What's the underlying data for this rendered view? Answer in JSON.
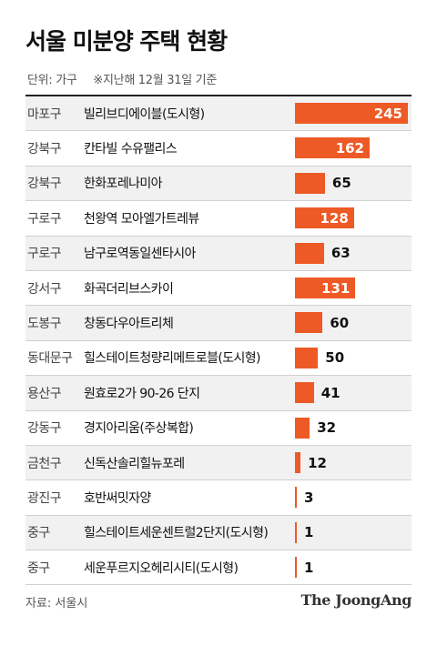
{
  "title": "서울 미분양 주택 현황",
  "unit_note": "단위: 가구",
  "date_note": "※지난해 12월 31일 기준",
  "source": "자료: 서울시",
  "logo": "The JoongAng",
  "colors": {
    "bar": "#ee5a26",
    "row_alt": "#f1f1f1"
  },
  "chart_data": {
    "type": "bar",
    "orientation": "horizontal",
    "xlim": [
      0,
      245
    ],
    "rows": [
      {
        "district": "마포구",
        "complex": "빌리브디에이블(도시형)",
        "value": 245
      },
      {
        "district": "강북구",
        "complex": "칸타빌 수유팰리스",
        "value": 162
      },
      {
        "district": "강북구",
        "complex": "한화포레나미아",
        "value": 65
      },
      {
        "district": "구로구",
        "complex": "천왕역 모아엘가트레뷰",
        "value": 128
      },
      {
        "district": "구로구",
        "complex": "남구로역동일센타시아",
        "value": 63
      },
      {
        "district": "강서구",
        "complex": "화곡더리브스카이",
        "value": 131
      },
      {
        "district": "도봉구",
        "complex": "창동다우아트리체",
        "value": 60
      },
      {
        "district": "동대문구",
        "complex": "힐스테이트청량리메트로블(도시형)",
        "value": 50
      },
      {
        "district": "용산구",
        "complex": "원효로2가 90-26 단지",
        "value": 41
      },
      {
        "district": "강동구",
        "complex": "경지아리움(주상복합)",
        "value": 32
      },
      {
        "district": "금천구",
        "complex": "신독산솔리힐뉴포레",
        "value": 12
      },
      {
        "district": "광진구",
        "complex": "호반써밋자양",
        "value": 3
      },
      {
        "district": "중구",
        "complex": "힐스테이트세운센트럴2단지(도시형)",
        "value": 1
      },
      {
        "district": "중구",
        "complex": "세운푸르지오헤리시티(도시형)",
        "value": 1
      }
    ]
  }
}
